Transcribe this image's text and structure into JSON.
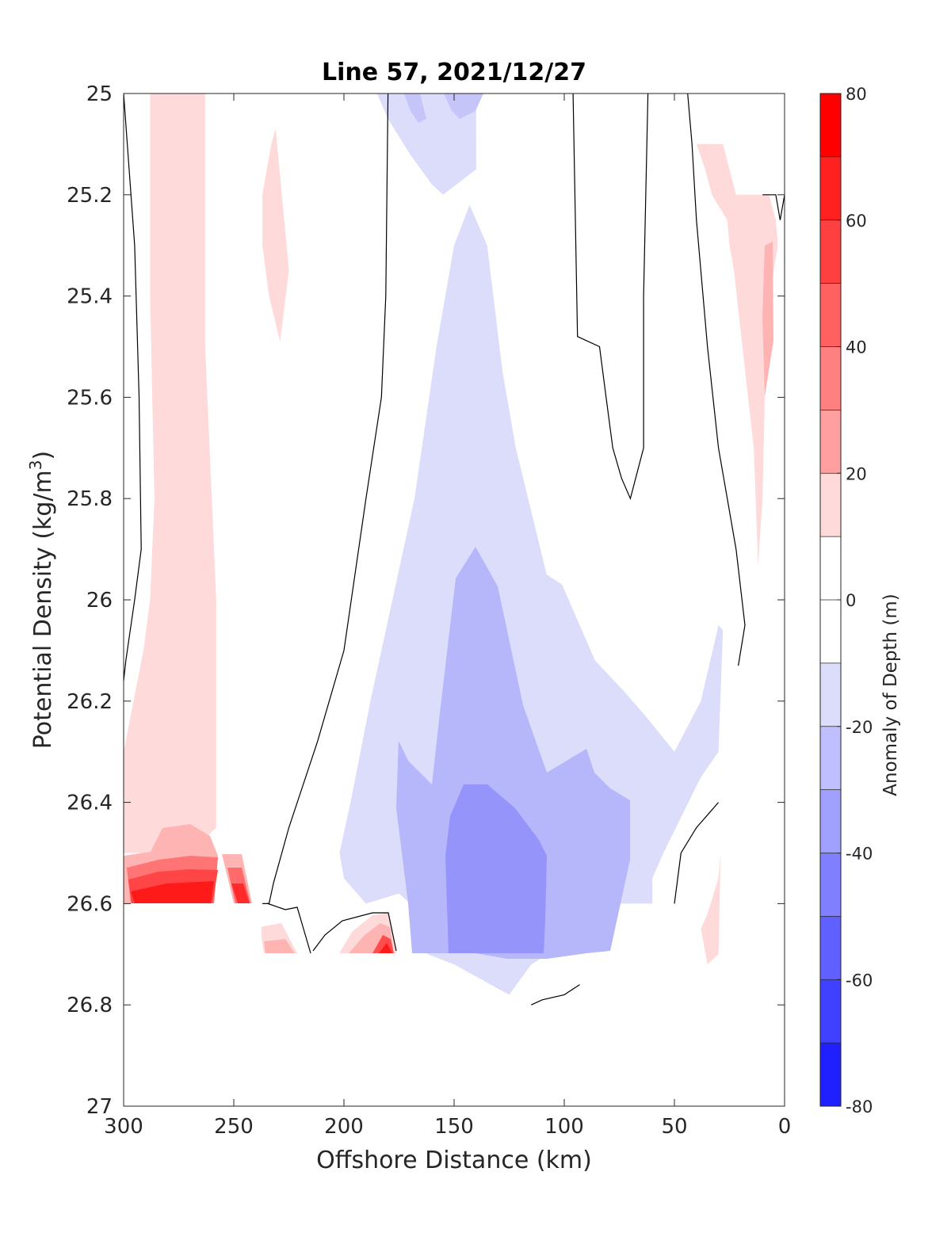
{
  "chart_data": {
    "type": "heatmap",
    "title": "Line 57, 2021/12/27",
    "xlabel": "Offshore Distance (km)",
    "ylabel_main": "Potential Density (kg/m",
    "ylabel_sup": "3",
    "ylabel_close": ")",
    "xlim": [
      300,
      0
    ],
    "ylim": [
      27,
      25
    ],
    "x_reversed": true,
    "y_reversed": true,
    "xticks": [
      300,
      250,
      200,
      150,
      100,
      50,
      0
    ],
    "xtick_labels": [
      "300",
      "250",
      "200",
      "150",
      "100",
      "50",
      "0"
    ],
    "yticks": [
      25,
      25.2,
      25.4,
      25.6,
      25.8,
      26,
      26.2,
      26.4,
      26.6,
      26.8,
      27
    ],
    "ytick_labels": [
      "25",
      "25.2",
      "25.4",
      "25.6",
      "25.8",
      "26",
      "26.2",
      "26.4",
      "26.6",
      "26.8",
      "27"
    ],
    "colorbar": {
      "label": "Anomaly of Depth (m)",
      "limits": [
        -80,
        80
      ],
      "ticks": [
        80,
        60,
        40,
        20,
        0,
        -20,
        -40,
        -60,
        -80
      ],
      "tick_labels": [
        "80",
        "60",
        "40",
        "20",
        "0",
        "-20",
        "-40",
        "-60",
        "-80"
      ],
      "levels": [
        -80,
        -70,
        -60,
        -50,
        -40,
        -30,
        -20,
        -10,
        10,
        20,
        30,
        40,
        50,
        60,
        70,
        80
      ],
      "colors": [
        "#0000ff",
        "#2020ff",
        "#4040ff",
        "#6060ff",
        "#8080ff",
        "#a0a0ff",
        "#bfbfff",
        "#e0e0ff",
        "#ffffff",
        "#ffdfdf",
        "#ffbfbf",
        "#ff9f9f",
        "#ff8080",
        "#ff6060",
        "#ff4040",
        "#ff2020",
        "#ff0000"
      ]
    },
    "regions": [
      {
        "level": 15,
        "color": "#ffdada",
        "x": [
          280,
          263,
          263,
          258,
          258,
          258,
          270,
          285,
          300,
          300,
          291,
          288,
          286,
          288,
          288,
          280
        ],
        "y": [
          25,
          25.0,
          25.5,
          26.0,
          26.3,
          26.45,
          26.5,
          26.5,
          26.5,
          26.3,
          26.1,
          26.0,
          25.8,
          25.4,
          25.0,
          25
        ]
      },
      {
        "level": 15,
        "color": "#ffdada",
        "x": [
          231,
          226,
          225,
          229,
          234,
          237,
          237,
          233,
          231
        ],
        "y": [
          25.07,
          25.3,
          25.35,
          25.49,
          25.4,
          25.3,
          25.2,
          25.1,
          25.07
        ]
      },
      {
        "level": 15,
        "color": "#ffdada",
        "x": [
          40,
          28,
          22,
          11,
          10,
          7,
          4,
          3,
          5,
          9,
          10,
          12,
          14,
          23,
          25,
          26,
          33,
          36,
          40
        ],
        "y": [
          25.1,
          25.1,
          25.2,
          25.2,
          25.2,
          25.2,
          25.25,
          25.3,
          25.35,
          25.6,
          25.8,
          25.93,
          25.7,
          25.35,
          25.3,
          25.25,
          25.2,
          25.15,
          25.1
        ]
      },
      {
        "level": 15,
        "color": "#ffdada",
        "x": [
          35,
          30,
          29,
          30,
          35,
          38,
          35
        ],
        "y": [
          26.62,
          26.55,
          26.5,
          26.7,
          26.72,
          26.65,
          26.62
        ]
      },
      {
        "level": -15,
        "color": "#dcdcfb",
        "x": [
          185,
          180,
          170,
          160,
          155,
          140,
          140,
          150,
          160,
          175,
          185
        ],
        "y": [
          25,
          25.05,
          25.12,
          25.18,
          25.2,
          25.15,
          25.0,
          25.0,
          25.0,
          25.0,
          25.0
        ]
      },
      {
        "level": -15,
        "color": "#dcdcfb",
        "x": [
          143,
          135,
          128,
          122,
          108,
          101,
          86,
          73,
          63,
          50,
          38,
          30,
          28,
          30,
          38,
          55,
          60,
          60,
          65,
          85,
          90,
          100,
          115,
          125,
          150,
          162,
          170,
          175,
          190,
          200,
          202,
          197,
          188,
          168,
          158,
          150,
          143
        ],
        "y": [
          25.22,
          25.3,
          25.55,
          25.7,
          25.95,
          25.97,
          26.12,
          26.18,
          26.23,
          26.3,
          26.2,
          26.05,
          26.06,
          26.3,
          26.35,
          26.5,
          26.55,
          26.6,
          26.6,
          26.6,
          26.6,
          26.68,
          26.72,
          26.78,
          26.72,
          26.7,
          26.6,
          26.58,
          26.6,
          26.55,
          26.5,
          26.4,
          26.2,
          25.8,
          25.5,
          25.3,
          25.22
        ]
      }
    ],
    "contour_zero_lines": [
      {
        "x": [
          300,
          295,
          293,
          292,
          295,
          299,
          300
        ],
        "y": [
          25.0,
          25.3,
          25.6,
          25.9,
          26.0,
          26.12,
          26.16
        ]
      },
      {
        "x": [
          180,
          181,
          183,
          190,
          200,
          212,
          225,
          232,
          234,
          237
        ],
        "y": [
          25.0,
          25.4,
          25.6,
          25.8,
          26.1,
          26.28,
          26.45,
          26.56,
          26.6,
          26.6
        ]
      },
      {
        "x": [
          96,
          94,
          84,
          81,
          78,
          74,
          70,
          64,
          64,
          62
        ],
        "y": [
          25.0,
          25.48,
          25.5,
          25.6,
          25.7,
          25.76,
          25.8,
          25.7,
          25.4,
          25.0
        ]
      },
      {
        "x": [
          44,
          42,
          40,
          35,
          30,
          22,
          18,
          21
        ],
        "y": [
          25.0,
          25.1,
          25.25,
          25.5,
          25.7,
          25.9,
          26.05,
          26.13
        ]
      },
      {
        "x": [
          50,
          47,
          40,
          30
        ],
        "y": [
          26.6,
          26.5,
          26.45,
          26.4
        ]
      },
      {
        "x": [
          115,
          110,
          100,
          93
        ],
        "y": [
          26.8,
          26.79,
          26.78,
          26.76
        ]
      },
      {
        "x": [
          10,
          4,
          2,
          0
        ],
        "y": [
          25.2,
          25.2,
          25.25,
          25.2
        ]
      }
    ]
  }
}
